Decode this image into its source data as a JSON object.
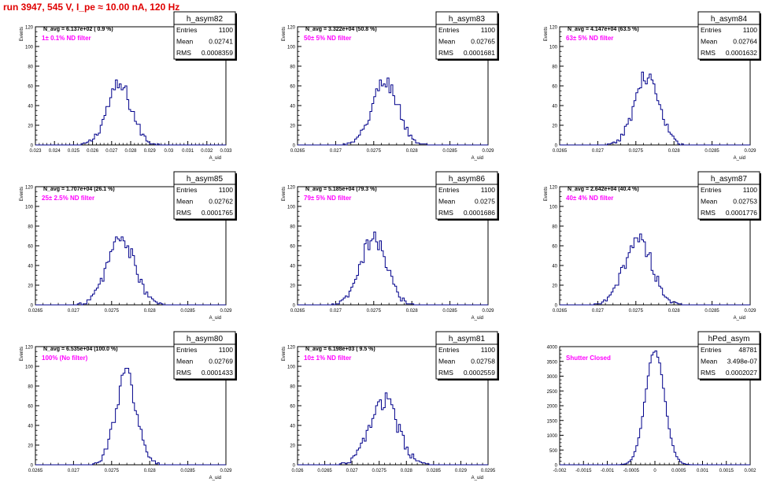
{
  "page": {
    "title": "run 3947,   545 V, I_pe ≈ 10.00 nA, 120 Hz"
  },
  "colors": {
    "histogram_line": "#00008b",
    "filter_text": "#ff00ff",
    "title_text": "#e00000",
    "axis": "#000000"
  },
  "chart_data": [
    {
      "type": "histogram",
      "name": "h_asym82",
      "stats": {
        "entries_label": "Entries",
        "entries": "1100",
        "mean_label": "Mean",
        "mean": "0.02741",
        "rms_label": "RMS",
        "rms": "0.0008359"
      },
      "navg": "N_avg = 6.137e+02 ( 0.9 %)",
      "filter": "1± 0.1% ND filter",
      "xlim": [
        0.023,
        0.033
      ],
      "ylim": [
        0,
        120
      ],
      "xticks": [
        "0.023",
        "0.024",
        "0.025",
        "0.026",
        "0.027",
        "0.028",
        "0.029",
        "0.03",
        "0.031",
        "0.032",
        "0.033"
      ],
      "yticks": [
        "0",
        "20",
        "40",
        "60",
        "80",
        "100",
        "120"
      ],
      "xlabel": "A_uid",
      "ylabel": "Events",
      "peak_center": 0.02741,
      "peak_height": 60,
      "peak_sigma": 0.00065
    },
    {
      "type": "histogram",
      "name": "h_asym83",
      "stats": {
        "entries_label": "Entries",
        "entries": "1100",
        "mean_label": "Mean",
        "mean": "0.02765",
        "rms_label": "RMS",
        "rms": "0.0001681"
      },
      "navg": "N_avg = 3.322e+04 (50.8 %)",
      "filter": "50± 5% ND filter",
      "xlim": [
        0.0265,
        0.029
      ],
      "ylim": [
        0,
        120
      ],
      "xticks": [
        "0.0265",
        "0.027",
        "0.0275",
        "0.028",
        "0.0285",
        "0.029"
      ],
      "yticks": [
        "0",
        "20",
        "40",
        "60",
        "80",
        "100",
        "120"
      ],
      "xlabel": "A_uid",
      "ylabel": "Events",
      "peak_center": 0.02765,
      "peak_height": 64,
      "peak_sigma": 0.00017
    },
    {
      "type": "histogram",
      "name": "h_asym84",
      "stats": {
        "entries_label": "Entries",
        "entries": "1100",
        "mean_label": "Mean",
        "mean": "0.02764",
        "rms_label": "RMS",
        "rms": "0.0001632"
      },
      "navg": "N_avg = 4.147e+04 (63.5 %)",
      "filter": "63± 5% ND filter",
      "xlim": [
        0.0265,
        0.029
      ],
      "ylim": [
        0,
        120
      ],
      "xticks": [
        "0.0265",
        "0.027",
        "0.0275",
        "0.028",
        "0.0285",
        "0.029"
      ],
      "yticks": [
        "0",
        "20",
        "40",
        "60",
        "80",
        "100",
        "120"
      ],
      "xlabel": "A_uid",
      "ylabel": "Events",
      "peak_center": 0.02764,
      "peak_height": 70,
      "peak_sigma": 0.00016
    },
    {
      "type": "histogram",
      "name": "h_asym85",
      "stats": {
        "entries_label": "Entries",
        "entries": "1100",
        "mean_label": "Mean",
        "mean": "0.02762",
        "rms_label": "RMS",
        "rms": "0.0001765"
      },
      "navg": "N_avg = 1.707e+04 (26.1 %)",
      "filter": "25± 2.5% ND filter",
      "xlim": [
        0.0265,
        0.029
      ],
      "ylim": [
        0,
        120
      ],
      "xticks": [
        "0.0265",
        "0.027",
        "0.0275",
        "0.028",
        "0.0285",
        "0.029"
      ],
      "yticks": [
        "0",
        "20",
        "40",
        "60",
        "80",
        "100",
        "120"
      ],
      "xlabel": "A_uid",
      "ylabel": "Events",
      "peak_center": 0.02762,
      "peak_height": 68,
      "peak_sigma": 0.00018
    },
    {
      "type": "histogram",
      "name": "h_asym86",
      "stats": {
        "entries_label": "Entries",
        "entries": "1100",
        "mean_label": "Mean",
        "mean": "0.0275",
        "rms_label": "RMS",
        "rms": "0.0001686"
      },
      "navg": "N_avg = 5.185e+04 (79.3 %)",
      "filter": "79± 5% ND filter",
      "xlim": [
        0.0265,
        0.029
      ],
      "ylim": [
        0,
        120
      ],
      "xticks": [
        "0.0265",
        "0.027",
        "0.0275",
        "0.028",
        "0.0285",
        "0.029"
      ],
      "yticks": [
        "0",
        "20",
        "40",
        "60",
        "80",
        "100",
        "120"
      ],
      "xlabel": "A_uid",
      "ylabel": "Events",
      "peak_center": 0.0275,
      "peak_height": 67,
      "peak_sigma": 0.00017
    },
    {
      "type": "histogram",
      "name": "h_asym87",
      "stats": {
        "entries_label": "Entries",
        "entries": "1100",
        "mean_label": "Mean",
        "mean": "0.02753",
        "rms_label": "RMS",
        "rms": "0.0001776"
      },
      "navg": "N_avg = 2.642e+04 (40.4 %)",
      "filter": "40± 4% ND filter",
      "xlim": [
        0.0265,
        0.029
      ],
      "ylim": [
        0,
        120
      ],
      "xticks": [
        "0.0265",
        "0.027",
        "0.0275",
        "0.028",
        "0.0285",
        "0.029"
      ],
      "yticks": [
        "0",
        "20",
        "40",
        "60",
        "80",
        "100",
        "120"
      ],
      "xlabel": "A_uid",
      "ylabel": "Events",
      "peak_center": 0.02753,
      "peak_height": 68,
      "peak_sigma": 0.00018
    },
    {
      "type": "histogram",
      "name": "h_asym80",
      "stats": {
        "entries_label": "Entries",
        "entries": "1100",
        "mean_label": "Mean",
        "mean": "0.02769",
        "rms_label": "RMS",
        "rms": "0.0001433"
      },
      "navg": "N_avg = 6.535e+04 (100.0 %)",
      "filter": "100% (No filter)",
      "xlim": [
        0.0265,
        0.029
      ],
      "ylim": [
        0,
        120
      ],
      "xticks": [
        "0.0265",
        "0.027",
        "0.0275",
        "0.028",
        "0.0285",
        "0.029"
      ],
      "yticks": [
        "0",
        "20",
        "40",
        "60",
        "80",
        "100",
        "120"
      ],
      "xlabel": "A_uid",
      "ylabel": "Events",
      "peak_center": 0.02769,
      "peak_height": 90,
      "peak_sigma": 0.00014
    },
    {
      "type": "histogram",
      "name": "h_asym81",
      "stats": {
        "entries_label": "Entries",
        "entries": "1100",
        "mean_label": "Mean",
        "mean": "0.02758",
        "rms_label": "RMS",
        "rms": "0.0002559"
      },
      "navg": "N_avg = 6.198e+03 ( 9.5 %)",
      "filter": "10± 1% ND filter",
      "xlim": [
        0.026,
        0.0295
      ],
      "ylim": [
        0,
        120
      ],
      "xticks": [
        "0.026",
        "0.0265",
        "0.027",
        "0.0275",
        "0.028",
        "0.0285",
        "0.029",
        "0.0295"
      ],
      "yticks": [
        "0",
        "20",
        "40",
        "60",
        "80",
        "100",
        "120"
      ],
      "xlabel": "A_uid",
      "ylabel": "Events",
      "peak_center": 0.02758,
      "peak_height": 65,
      "peak_sigma": 0.00026
    },
    {
      "type": "histogram",
      "name": "hPed_asym",
      "stats": {
        "entries_label": "Entries",
        "entries": "48781",
        "mean_label": "Mean",
        "mean": "3.498e-07",
        "rms_label": "RMS",
        "rms": "0.0002027"
      },
      "navg": "",
      "filter": "Shutter Closed",
      "xlim": [
        -0.002,
        0.002
      ],
      "ylim": [
        0,
        4000
      ],
      "xticks": [
        "-0.002",
        "-0.0015",
        "-0.001",
        "-0.0005",
        "0",
        "0.0005",
        "0.001",
        "0.0015",
        "0.002"
      ],
      "yticks": [
        "0",
        "500",
        "1000",
        "1500",
        "2000",
        "2500",
        "3000",
        "3500",
        "4000"
      ],
      "xlabel": "",
      "ylabel": "",
      "peak_center": 0.0,
      "peak_height": 3850,
      "peak_sigma": 0.0002
    }
  ]
}
